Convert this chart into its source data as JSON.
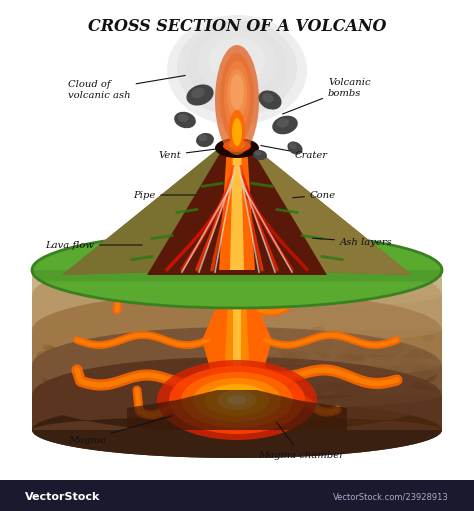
{
  "title": "CROSS SECTION OF A VOLCANO",
  "title_fontsize": 11.5,
  "bg_color": "#ffffff",
  "colors": {
    "green_top": "#5aaa30",
    "green_dark": "#3a8020",
    "green_side": "#2d6618",
    "layer1": "#c8a878",
    "layer2": "#b89060",
    "layer3": "#a07848",
    "layer4": "#8a6438",
    "layer5": "#c8b090",
    "layer6": "#b09878",
    "layer7": "#a08060",
    "layer_dark1": "#7a5535",
    "layer_dark2": "#6a4528",
    "layer_dark3": "#5a3820",
    "bottom_dark": "#3a2010",
    "cone_outer_left": "#7a6830",
    "cone_outer_right": "#8a7840",
    "cone_inner": "#5a2810",
    "cone_dark": "#3a1808",
    "lava_bright": "#ff6600",
    "lava_orange": "#ff8800",
    "lava_yellow": "#ffcc44",
    "lava_red": "#dd2200",
    "lava_dark": "#cc1100",
    "pipe_red": "#cc2200",
    "plume_white": "#e8e8e8",
    "plume_gray": "#c8c8c8",
    "plume_orange": "#e87020",
    "plume_light_orange": "#f09050",
    "bomb_dark": "#444444",
    "bomb_medium": "#666666",
    "magma_glow": "#ff8800",
    "magma_yellow": "#ffcc00",
    "vectorstock_bg": "#1a1a2e",
    "side_face": "#6a4020"
  },
  "watermark_text": "VectorStock",
  "watermark_url": "VectorStock.com/23928913"
}
